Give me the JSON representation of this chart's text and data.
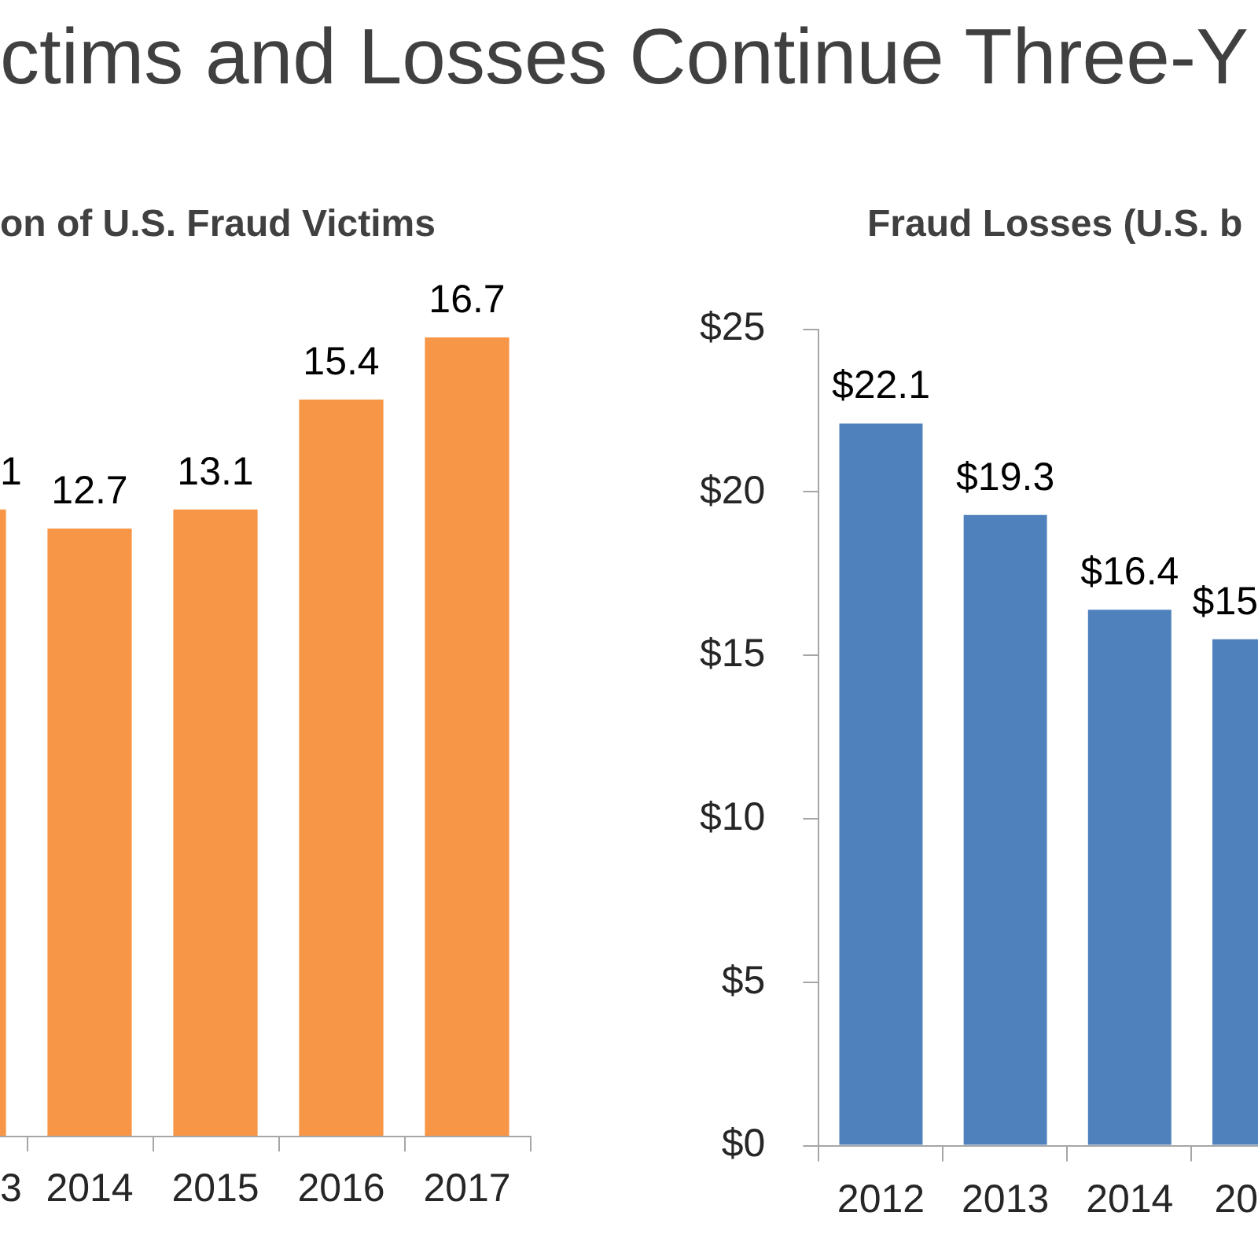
{
  "chart_data": [
    {
      "type": "bar",
      "title": "ctims and Losses Continue Three-Y",
      "subtitle": "on of U.S. Fraud Victims",
      "categories": [
        "3",
        "2014",
        "2015",
        "2016",
        "2017"
      ],
      "values": [
        13.1,
        12.7,
        13.1,
        15.4,
        16.7
      ],
      "color": "#f79646",
      "value_labels": [
        null,
        "12.7",
        "13.1",
        "15.4",
        "16.7"
      ],
      "annotations": [
        {
          "text": "1",
          "x": "3",
          "y": 13.1
        }
      ],
      "tick_labels": "x"
    },
    {
      "type": "bar",
      "title": "Fraud Losses (U.S. b",
      "categories": [
        "2012",
        "2013",
        "2014",
        "20"
      ],
      "values": [
        22.1,
        19.3,
        16.4,
        15.5
      ],
      "color": "#4f81bd",
      "value_labels": [
        "$22.1",
        "$19.3",
        "$16.4",
        "$15"
      ],
      "ylim": [
        0,
        25
      ],
      "yticks": [
        {
          "value": 0,
          "label": "$0"
        },
        {
          "value": 5,
          "label": "$5"
        },
        {
          "value": 10,
          "label": "$10"
        },
        {
          "value": 15,
          "label": "$15"
        },
        {
          "value": 20,
          "label": "$20"
        },
        {
          "value": 25,
          "label": "$25"
        }
      ]
    }
  ]
}
